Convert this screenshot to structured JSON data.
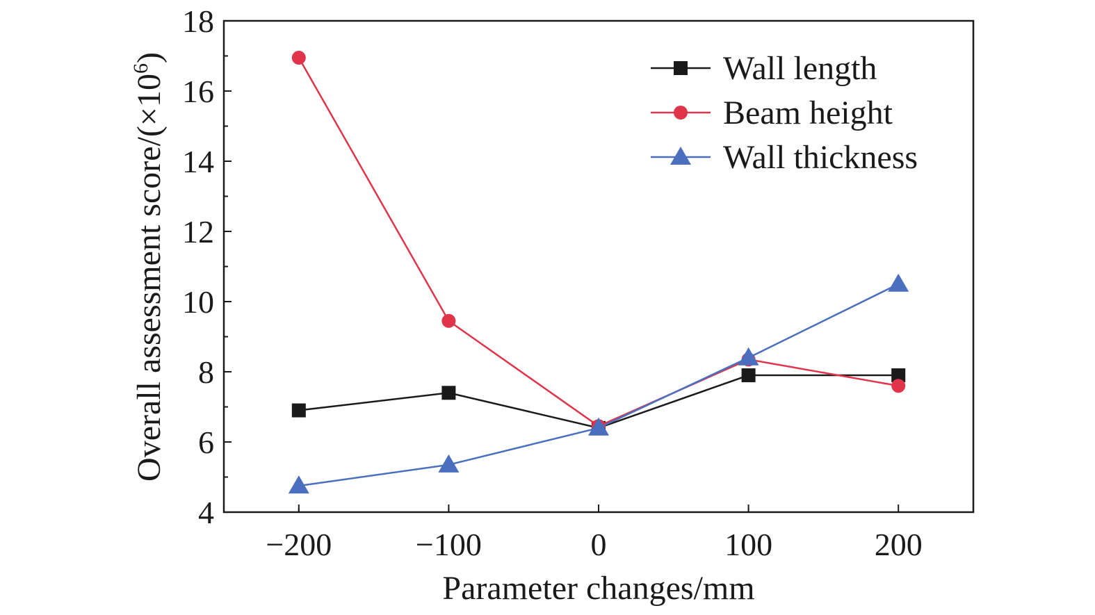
{
  "chart_data": {
    "type": "line",
    "xlabel": "Parameter changes/mm",
    "ylabel": "Overall assessment score/(×10",
    "ylabel_exponent": "6",
    "ylabel_close": ")",
    "x": [
      -200,
      -100,
      0,
      100,
      200
    ],
    "x_tick_labels": [
      "−200",
      "−100",
      "0",
      "100",
      "200"
    ],
    "y_ticks": [
      4,
      6,
      8,
      10,
      12,
      14,
      16,
      18
    ],
    "y_tick_labels": [
      "4",
      "6",
      "8",
      "10",
      "12",
      "14",
      "16",
      "18"
    ],
    "xlim": [
      -250,
      250
    ],
    "ylim": [
      4,
      18
    ],
    "grid": false,
    "legend_position": "top-right",
    "series": [
      {
        "name": "Wall length",
        "values": [
          6.9,
          7.4,
          6.4,
          7.9,
          7.9
        ],
        "color": "#1a1a1a",
        "marker": "square"
      },
      {
        "name": "Beam height",
        "values": [
          16.95,
          9.45,
          6.45,
          8.35,
          7.6
        ],
        "color": "#e0344a",
        "marker": "circle"
      },
      {
        "name": "Wall thickness",
        "values": [
          4.75,
          5.35,
          6.4,
          8.4,
          10.5
        ],
        "color": "#4a6fbf",
        "marker": "triangle"
      }
    ]
  }
}
